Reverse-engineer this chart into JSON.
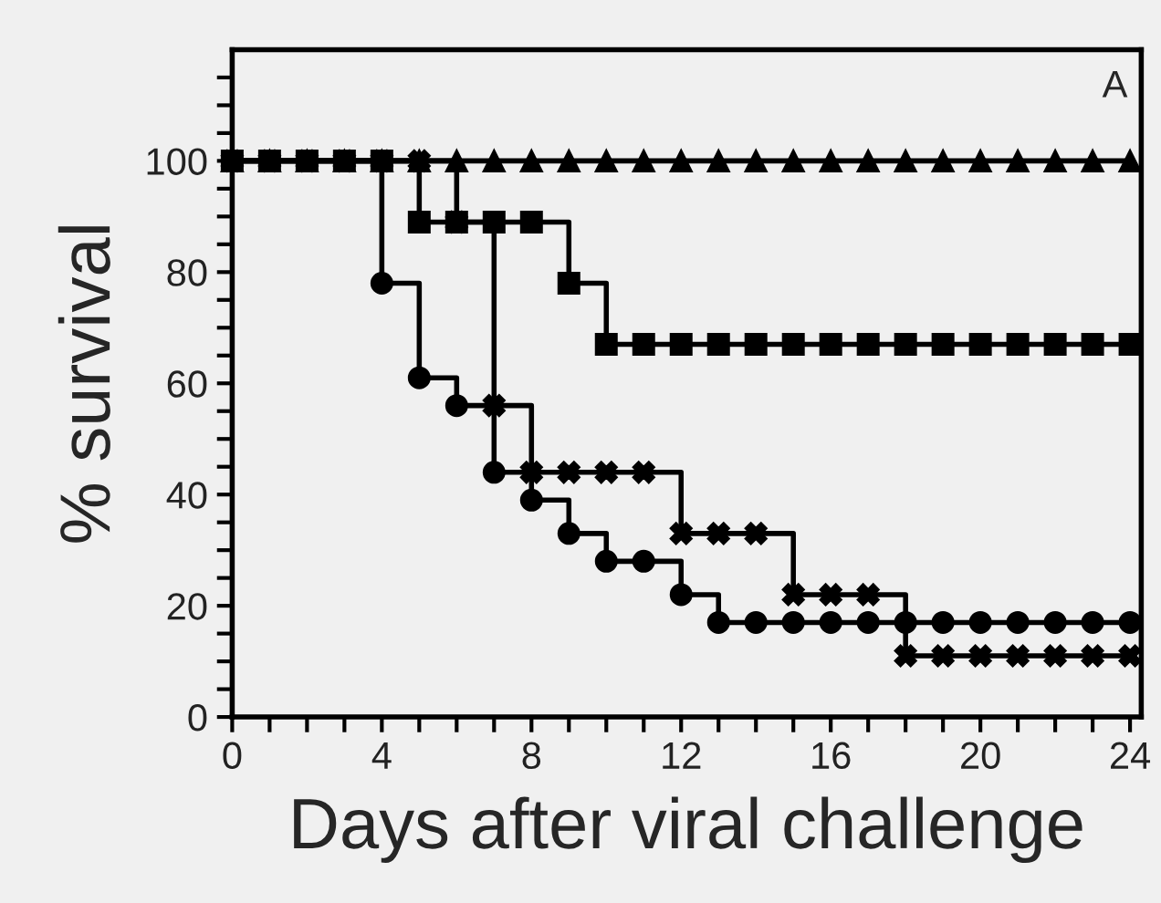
{
  "chart_data": {
    "type": "step",
    "xlabel": "Days after viral challenge",
    "ylabel": "% survival",
    "annotations": [
      "A"
    ],
    "x": [
      0,
      1,
      2,
      3,
      4,
      5,
      6,
      7,
      8,
      9,
      10,
      11,
      12,
      13,
      14,
      15,
      16,
      17,
      18,
      19,
      20,
      21,
      22,
      23,
      24
    ],
    "series": [
      {
        "color": "#000000",
        "marker": "triangle",
        "values": [
          100,
          100,
          100,
          100,
          100,
          100,
          100,
          100,
          100,
          100,
          100,
          100,
          100,
          100,
          100,
          100,
          100,
          100,
          100,
          100,
          100,
          100,
          100,
          100,
          100
        ]
      },
      {
        "color": "#000000",
        "marker": "square",
        "values": [
          100,
          100,
          100,
          100,
          100,
          89,
          89,
          89,
          89,
          78,
          67,
          67,
          67,
          67,
          67,
          67,
          67,
          67,
          67,
          67,
          67,
          67,
          67,
          67,
          67
        ]
      },
      {
        "color": "#000000",
        "marker": "circle",
        "values": [
          100,
          100,
          100,
          100,
          78,
          61,
          56,
          44,
          39,
          33,
          28,
          28,
          22,
          17,
          17,
          17,
          17,
          17,
          17,
          17,
          17,
          17,
          17,
          17,
          17
        ]
      },
      {
        "color": "#000000",
        "marker": "cross",
        "values": [
          100,
          100,
          100,
          100,
          100,
          100,
          89,
          56,
          44,
          44,
          44,
          44,
          33,
          33,
          33,
          22,
          22,
          22,
          11,
          11,
          11,
          11,
          11,
          11,
          11
        ]
      }
    ],
    "xlim": [
      0,
      24.3
    ],
    "ylim": [
      0,
      120
    ],
    "xticks": [
      0,
      {
        "value": 1,
        "label": null
      },
      {
        "value": 2,
        "label": null
      },
      {
        "value": 3,
        "label": null
      },
      4,
      {
        "value": 5,
        "label": null
      },
      {
        "value": 6,
        "label": null
      },
      {
        "value": 7,
        "label": null
      },
      8,
      {
        "value": 9,
        "label": null
      },
      {
        "value": 10,
        "label": null
      },
      {
        "value": 11,
        "label": null
      },
      12,
      {
        "value": 13,
        "label": null
      },
      {
        "value": 14,
        "label": null
      },
      {
        "value": 15,
        "label": null
      },
      16,
      {
        "value": 17,
        "label": null
      },
      {
        "value": 18,
        "label": null
      },
      {
        "value": 19,
        "label": null
      },
      20,
      {
        "value": 21,
        "label": null
      },
      {
        "value": 22,
        "label": null
      },
      {
        "value": 23,
        "label": null
      },
      24
    ],
    "yticks": [
      0,
      {
        "value": 5,
        "label": null
      },
      {
        "value": 10,
        "label": null
      },
      {
        "value": 15,
        "label": null
      },
      20,
      {
        "value": 25,
        "label": null
      },
      {
        "value": 30,
        "label": null
      },
      {
        "value": 35,
        "label": null
      },
      40,
      {
        "value": 45,
        "label": null
      },
      {
        "value": 50,
        "label": null
      },
      {
        "value": 55,
        "label": null
      },
      60,
      {
        "value": 65,
        "label": null
      },
      {
        "value": 70,
        "label": null
      },
      {
        "value": 75,
        "label": null
      },
      80,
      {
        "value": 85,
        "label": null
      },
      {
        "value": 90,
        "label": null
      },
      {
        "value": 95,
        "label": null
      },
      100,
      {
        "value": 105,
        "label": null
      },
      {
        "value": 110,
        "label": null
      },
      {
        "value": 115,
        "label": null
      }
    ],
    "grid": false
  }
}
